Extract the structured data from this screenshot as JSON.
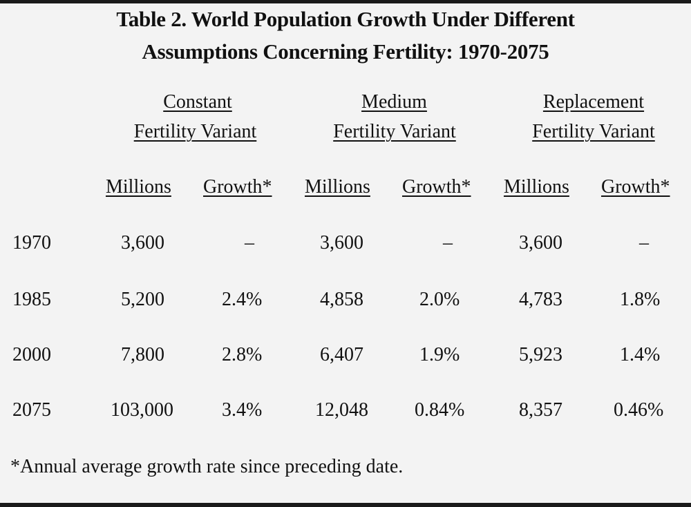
{
  "title_line1": "Table 2.  World Population Growth Under Different",
  "title_line2": "Assumptions Concerning Fertility:   1970-2075",
  "groups": [
    {
      "line1": "Constant",
      "line2": "Fertility Variant"
    },
    {
      "line1": "Medium",
      "line2": "Fertility Variant"
    },
    {
      "line1": "Replacement",
      "line2": "Fertility Variant"
    }
  ],
  "columns": [
    "Millions",
    "Growth*",
    "Millions",
    "Growth*",
    "Millions",
    "Growth*"
  ],
  "rows": [
    {
      "year": "1970",
      "cells": [
        "3,600",
        "–",
        "3,600",
        "–",
        "3,600",
        "–"
      ]
    },
    {
      "year": "1985",
      "cells": [
        "5,200",
        "2.4%",
        "4,858",
        "2.0%",
        "4,783",
        "1.8%"
      ]
    },
    {
      "year": "2000",
      "cells": [
        "7,800",
        "2.8%",
        "6,407",
        "1.9%",
        "5,923",
        "1.4%"
      ]
    },
    {
      "year": "2075",
      "cells": [
        "103,000",
        "3.4%",
        "12,048",
        "0.84%",
        "8,357",
        "0.46%"
      ]
    }
  ],
  "footnote": "*Annual average growth rate since preceding date."
}
